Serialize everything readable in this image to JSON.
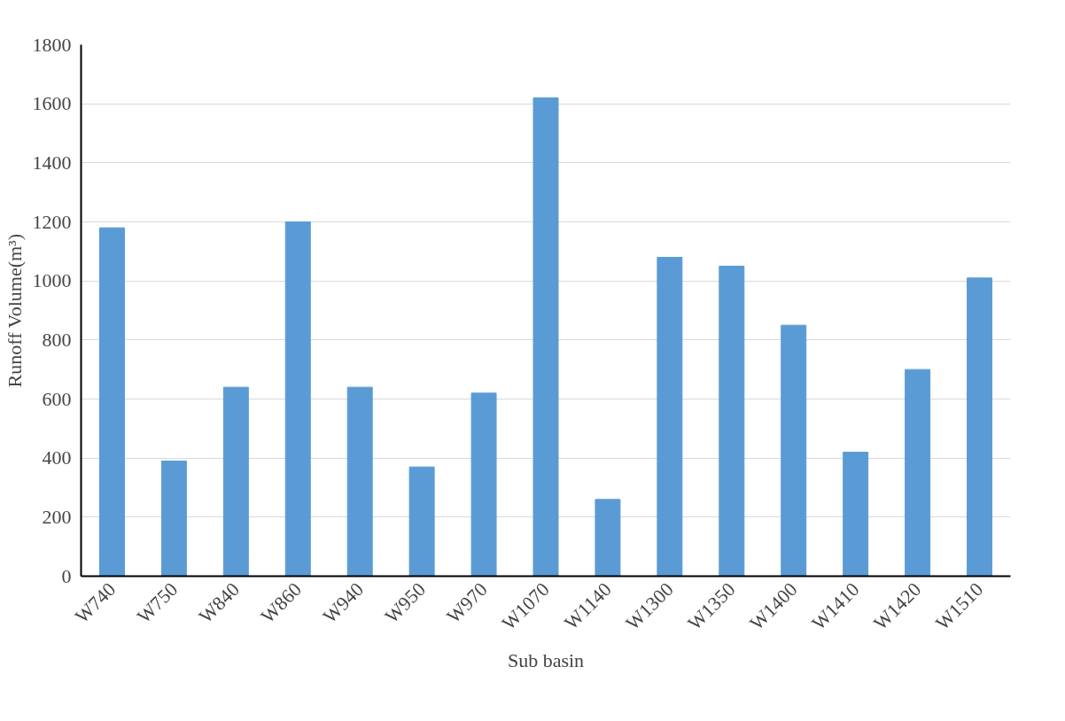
{
  "chart_data": {
    "type": "bar",
    "xlabel": "Sub basin",
    "ylabel": "Runoff Volume(m³)",
    "categories": [
      "W740",
      "W750",
      "W840",
      "W860",
      "W940",
      "W950",
      "W970",
      "W1070",
      "W1140",
      "W1300",
      "W1350",
      "W1400",
      "W1410",
      "W1420",
      "W1510"
    ],
    "values": [
      1180,
      390,
      640,
      1200,
      640,
      370,
      620,
      1620,
      260,
      1080,
      1050,
      850,
      420,
      700,
      1010
    ],
    "color": "#5b9bd5",
    "ylim": [
      0,
      1800
    ],
    "yticks": [
      0,
      200,
      400,
      600,
      800,
      1000,
      1200,
      1400,
      1600,
      1800
    ],
    "grid": "y"
  }
}
